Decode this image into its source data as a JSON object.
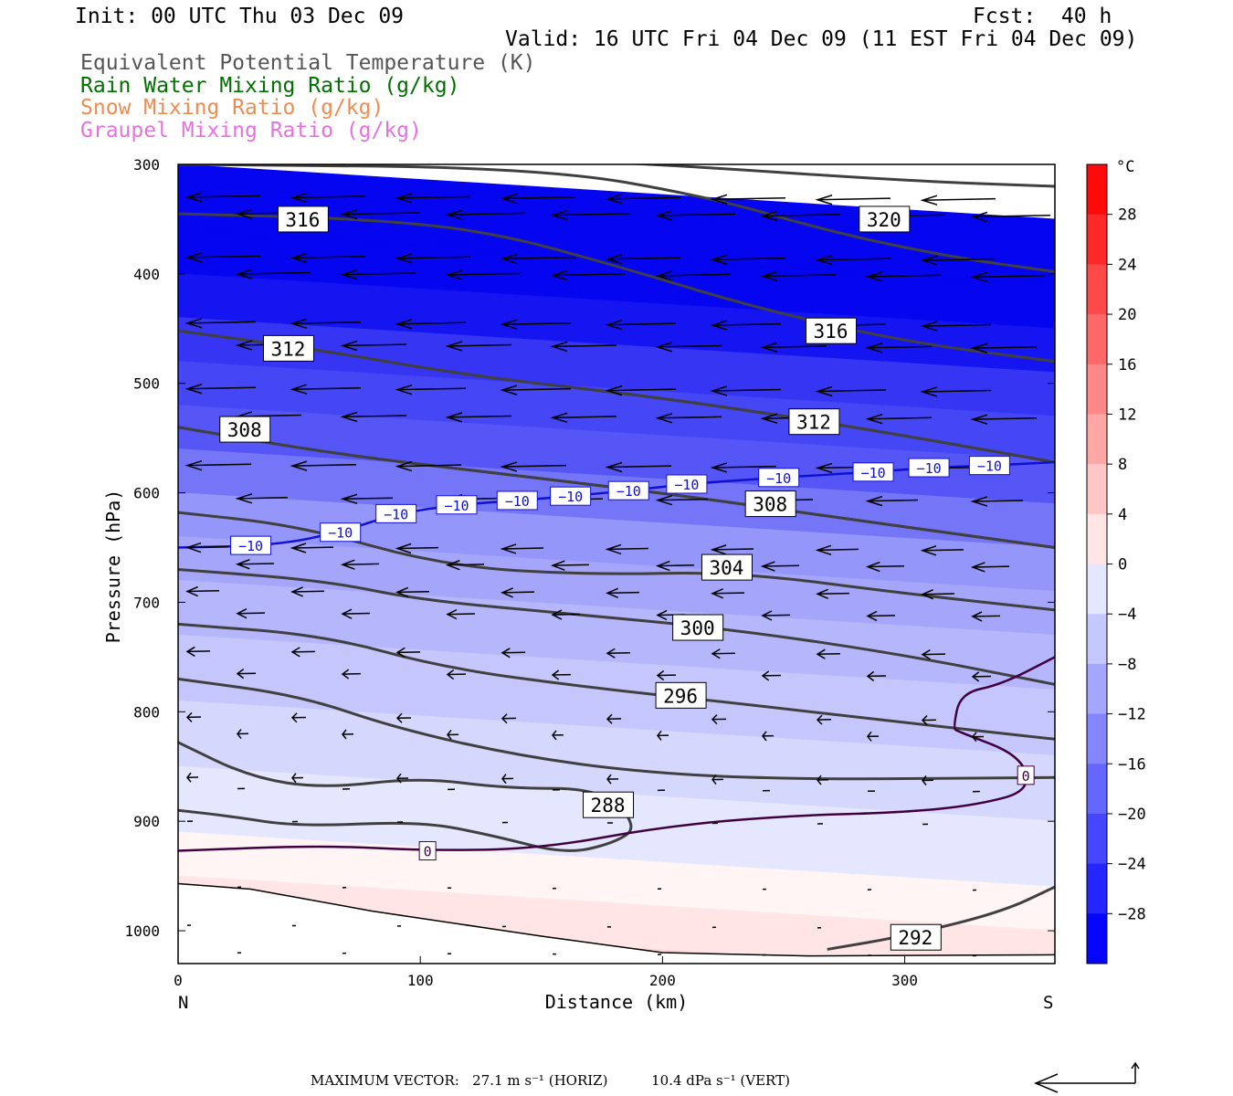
{
  "header": {
    "init": "Init: 00 UTC Thu 03 Dec 09",
    "fcst": "Fcst:  40 h",
    "valid": "Valid: 16 UTC Fri 04 Dec 09 (11 EST Fri 04 Dec 09)",
    "fields": [
      {
        "text": "Equivalent Potential Temperature (K)",
        "color": "#555555"
      },
      {
        "text": "Rain Water Mixing Ratio (g/kg)",
        "color": "#007000"
      },
      {
        "text": "Snow Mixing Ratio (g/kg)",
        "color": "#f08c50"
      },
      {
        "text": "Graupel Mixing Ratio (g/kg)",
        "color": "#e870e0"
      }
    ]
  },
  "chart_data": {
    "type": "heatmap",
    "xlabel": "Distance (km)",
    "ylabel": "Pressure (hPa)",
    "x_ticks": [
      0,
      100,
      200,
      300
    ],
    "x_end_labels": {
      "left": "N",
      "right": "S"
    },
    "xlim": [
      0,
      362
    ],
    "y_ticks": [
      300,
      400,
      500,
      600,
      700,
      800,
      900,
      1000
    ],
    "ylim": [
      1030,
      300
    ],
    "colorbar": {
      "unit": "°C",
      "tick_labels": [
        "28",
        "24",
        "20",
        "16",
        "12",
        "8",
        "4",
        "0",
        "−4",
        "−8",
        "−12",
        "−16",
        "−20",
        "−24",
        "−28"
      ],
      "min": -32,
      "max": 32,
      "step": 4
    },
    "theta_e_contours": [
      {
        "label": "320",
        "label_x": 282,
        "label_p": 350,
        "points": [
          [
            0,
            282
          ],
          [
            100,
            290
          ],
          [
            200,
            300
          ],
          [
            300,
            315
          ],
          [
            362,
            320
          ]
        ]
      },
      {
        "label": "316",
        "label_x": 42,
        "label_p": 350,
        "points": [
          [
            0,
            345
          ],
          [
            80,
            350
          ],
          [
            130,
            362
          ],
          [
            180,
            392
          ],
          [
            240,
            432
          ],
          [
            300,
            462
          ],
          [
            362,
            480
          ]
        ]
      },
      {
        "label": "316",
        "label_x": 260,
        "label_p": 452,
        "points": [
          [
            0,
            300
          ],
          [
            150,
            303
          ],
          [
            220,
            330
          ],
          [
            270,
            362
          ],
          [
            320,
            385
          ],
          [
            362,
            398
          ]
        ]
      },
      {
        "label": "312",
        "label_x": 36,
        "label_p": 468,
        "points": [
          [
            0,
            452
          ],
          [
            60,
            470
          ],
          [
            120,
            493
          ],
          [
            200,
            513
          ],
          [
            280,
            540
          ],
          [
            362,
            572
          ]
        ]
      },
      {
        "label": "312",
        "label_x": 253,
        "label_p": 535,
        "points": [
          [
            0,
            452
          ],
          [
            60,
            470
          ],
          [
            120,
            493
          ],
          [
            200,
            513
          ],
          [
            280,
            540
          ],
          [
            362,
            572
          ]
        ]
      },
      {
        "label": "308",
        "label_x": 18,
        "label_p": 542,
        "points": [
          [
            0,
            540
          ],
          [
            60,
            563
          ],
          [
            130,
            582
          ],
          [
            200,
            600
          ],
          [
            280,
            625
          ],
          [
            362,
            650
          ]
        ]
      },
      {
        "label": "308",
        "label_x": 235,
        "label_p": 610,
        "points": [
          [
            0,
            540
          ],
          [
            60,
            563
          ],
          [
            130,
            582
          ],
          [
            200,
            600
          ],
          [
            280,
            625
          ],
          [
            362,
            650
          ]
        ]
      },
      {
        "label": "304",
        "label_x": 217,
        "label_p": 668,
        "points": [
          [
            0,
            618
          ],
          [
            50,
            630
          ],
          [
            110,
            667
          ],
          [
            170,
            675
          ],
          [
            230,
            672
          ],
          [
            300,
            692
          ],
          [
            362,
            707
          ]
        ]
      },
      {
        "label": "300",
        "label_x": 205,
        "label_p": 723,
        "points": [
          [
            0,
            670
          ],
          [
            60,
            680
          ],
          [
            100,
            698
          ],
          [
            160,
            710
          ],
          [
            230,
            725
          ],
          [
            300,
            748
          ],
          [
            362,
            775
          ]
        ]
      },
      {
        "label": "296",
        "label_x": 198,
        "label_p": 785,
        "points": [
          [
            0,
            720
          ],
          [
            60,
            730
          ],
          [
            110,
            760
          ],
          [
            170,
            778
          ],
          [
            230,
            792
          ],
          [
            300,
            810
          ],
          [
            362,
            825
          ]
        ]
      },
      {
        "label": "288",
        "label_x": 168,
        "label_p": 885,
        "points": [
          [
            0,
            770
          ],
          [
            50,
            785
          ],
          [
            90,
            815
          ],
          [
            140,
            840
          ],
          [
            190,
            855
          ],
          [
            250,
            862
          ],
          [
            362,
            860
          ]
        ]
      },
      {
        "label": "292",
        "label_x": 295,
        "label_p": 1006,
        "points": [
          [
            268,
            1017
          ],
          [
            300,
            1005
          ],
          [
            340,
            983
          ],
          [
            362,
            960
          ]
        ]
      },
      {
        "label": "",
        "label_x": 0,
        "label_p": 0,
        "points": [
          [
            0,
            828
          ],
          [
            30,
            860
          ],
          [
            60,
            870
          ],
          [
            100,
            860
          ],
          [
            135,
            870
          ],
          [
            175,
            870
          ],
          [
            190,
            905
          ],
          [
            180,
            920
          ],
          [
            160,
            930
          ],
          [
            130,
            913
          ],
          [
            100,
            900
          ],
          [
            50,
            905
          ],
          [
            20,
            895
          ],
          [
            0,
            890
          ]
        ]
      }
    ],
    "temperature_contours": [
      {
        "value": "−10",
        "color": "#1010d0",
        "label_positions": [
          [
            30,
            648
          ],
          [
            67,
            636
          ],
          [
            90,
            619
          ],
          [
            115,
            611
          ],
          [
            140,
            607
          ],
          [
            162,
            603
          ],
          [
            186,
            598
          ],
          [
            210,
            592
          ],
          [
            248,
            586
          ],
          [
            287,
            581
          ],
          [
            310,
            577
          ],
          [
            335,
            575
          ]
        ],
        "points": [
          [
            0,
            650
          ],
          [
            40,
            648
          ],
          [
            67,
            636
          ],
          [
            90,
            619
          ],
          [
            115,
            611
          ],
          [
            140,
            607
          ],
          [
            162,
            603
          ],
          [
            186,
            598
          ],
          [
            210,
            592
          ],
          [
            248,
            586
          ],
          [
            287,
            581
          ],
          [
            310,
            577
          ],
          [
            335,
            575
          ],
          [
            362,
            572
          ]
        ]
      },
      {
        "value": "0",
        "color": "#400040",
        "label_positions": [
          [
            103,
            927
          ],
          [
            350,
            858
          ]
        ],
        "points": [
          [
            0,
            927
          ],
          [
            60,
            922
          ],
          [
            103,
            927
          ],
          [
            150,
            925
          ],
          [
            200,
            905
          ],
          [
            250,
            895
          ],
          [
            300,
            892
          ],
          [
            330,
            885
          ],
          [
            352,
            872
          ],
          [
            348,
            840
          ],
          [
            322,
            818
          ],
          [
            320,
            815
          ],
          [
            323,
            783
          ],
          [
            340,
            775
          ],
          [
            362,
            750
          ]
        ]
      }
    ],
    "wind_barbs_note": "Wind vectors (mostly northerly, toward N)",
    "max_vector": {
      "horiz": "27.1 m s⁻¹ (HORIZ)",
      "vert": "10.4 dPa s⁻¹ (VERT)"
    }
  },
  "footer": {
    "label": "MAXIMUM VECTOR:",
    "horiz": "27.1 m s⁻¹ (HORIZ)",
    "vert": "10.4 dPa s⁻¹ (VERT)"
  }
}
